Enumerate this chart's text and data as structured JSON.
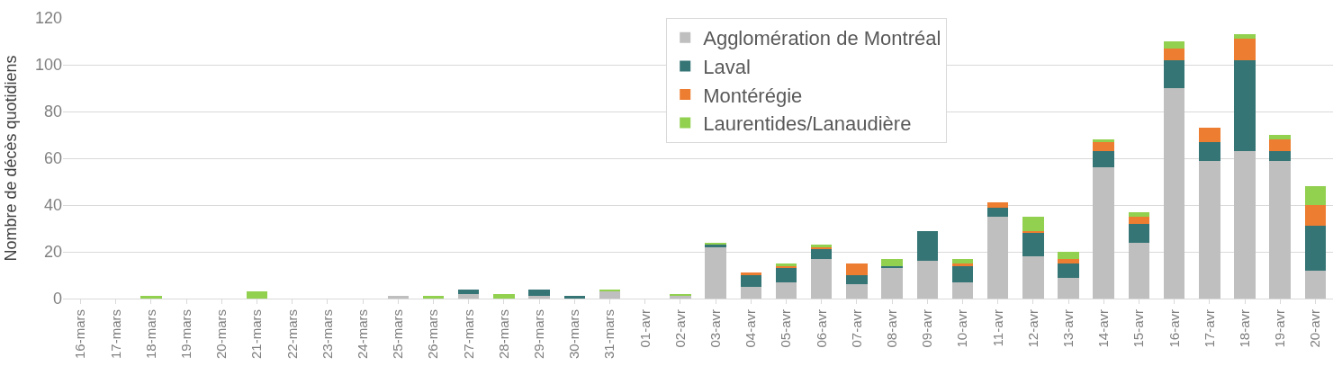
{
  "chart_data": {
    "type": "bar",
    "stacked": true,
    "ylabel": "Nombre de décès quotidiens",
    "categories": [
      "16-mars",
      "17-mars",
      "18-mars",
      "19-mars",
      "20-mars",
      "21-mars",
      "22-mars",
      "23-mars",
      "24-mars",
      "25-mars",
      "26-mars",
      "27-mars",
      "28-mars",
      "29-mars",
      "30-mars",
      "31-mars",
      "01-avr",
      "02-avr",
      "03-avr",
      "04-avr",
      "05-avr",
      "06-avr",
      "07-avr",
      "08-avr",
      "09-avr",
      "10-avr",
      "11-avr",
      "12-avr",
      "13-avr",
      "14-avr",
      "15-avr",
      "16-avr",
      "17-avr",
      "18-avr",
      "19-avr",
      "20-avr"
    ],
    "series": [
      {
        "name": "Agglomération de Montréal",
        "color": "#bfbfbf",
        "values": [
          0,
          0,
          0,
          0,
          0,
          0,
          0,
          0,
          0,
          1,
          0,
          2,
          0,
          1,
          0,
          3,
          0,
          1,
          22,
          5,
          7,
          17,
          6,
          13,
          16,
          7,
          35,
          18,
          9,
          56,
          24,
          90,
          59,
          63,
          59,
          12
        ]
      },
      {
        "name": "Laval",
        "color": "#367576",
        "values": [
          0,
          0,
          0,
          0,
          0,
          0,
          0,
          0,
          0,
          0,
          0,
          2,
          0,
          3,
          1,
          0,
          0,
          0,
          1,
          5,
          6,
          4,
          4,
          1,
          13,
          7,
          4,
          10,
          6,
          7,
          8,
          12,
          8,
          39,
          4,
          19
        ]
      },
      {
        "name": "Montérégie",
        "color": "#ed7d31",
        "values": [
          0,
          0,
          0,
          0,
          0,
          0,
          0,
          0,
          0,
          0,
          0,
          0,
          0,
          0,
          0,
          0,
          0,
          0,
          0,
          1,
          1,
          1,
          5,
          0,
          0,
          1,
          2,
          1,
          2,
          4,
          3,
          5,
          6,
          9,
          5,
          9
        ]
      },
      {
        "name": "Laurentides/Lanaudière",
        "color": "#92d050",
        "values": [
          0,
          0,
          1,
          0,
          0,
          3,
          0,
          0,
          0,
          0,
          1,
          0,
          2,
          0,
          0,
          1,
          0,
          1,
          1,
          0,
          1,
          1,
          0,
          3,
          0,
          2,
          0,
          6,
          3,
          1,
          2,
          3,
          0,
          2,
          2,
          8
        ]
      }
    ],
    "ylim": [
      0,
      120
    ],
    "yticks": [
      0,
      20,
      40,
      60,
      80,
      100,
      120
    ],
    "grid": "y",
    "legend": "top"
  }
}
